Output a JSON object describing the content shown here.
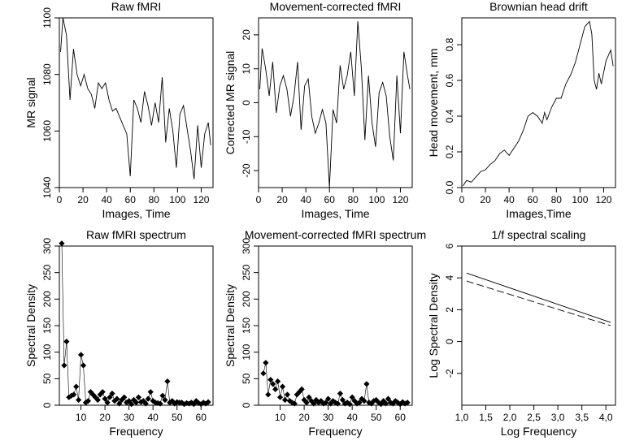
{
  "chart_data": [
    {
      "id": "raw_fmri",
      "type": "line",
      "title": "Raw fMRI",
      "xlabel": "Images, Time",
      "ylabel": "MR signal",
      "xlim": [
        0,
        130
      ],
      "ylim": [
        1040,
        1100
      ],
      "xticks": [
        0,
        20,
        40,
        60,
        80,
        100,
        120
      ],
      "yticks": [
        1040,
        1060,
        1080,
        1100
      ],
      "grid": false,
      "series": [
        {
          "color": "#000000",
          "style": "solid",
          "x": [
            1,
            3,
            6,
            9,
            12,
            15,
            18,
            21,
            24,
            27,
            30,
            33,
            36,
            39,
            42,
            45,
            48,
            51,
            54,
            57,
            60,
            63,
            66,
            69,
            72,
            75,
            78,
            81,
            84,
            87,
            90,
            93,
            96,
            99,
            102,
            105,
            108,
            111,
            114,
            117,
            120,
            123,
            126,
            128
          ],
          "y": [
            1088,
            1100,
            1094,
            1071,
            1089,
            1080,
            1076,
            1080,
            1075,
            1073,
            1068,
            1077,
            1075,
            1077,
            1071,
            1067,
            1068,
            1065,
            1062,
            1059,
            1044,
            1071,
            1068,
            1063,
            1074,
            1069,
            1062,
            1070,
            1063,
            1079,
            1056,
            1068,
            1060,
            1047,
            1066,
            1069,
            1061,
            1053,
            1043,
            1062,
            1047,
            1059,
            1063,
            1055
          ]
        }
      ]
    },
    {
      "id": "movement_corrected",
      "type": "line",
      "title": "Movement-corrected fMRI",
      "xlabel": "Images, Time",
      "ylabel": "Corrected MR signal",
      "xlim": [
        0,
        130
      ],
      "ylim": [
        -25,
        25
      ],
      "xticks": [
        0,
        20,
        40,
        60,
        80,
        100,
        120
      ],
      "yticks": [
        -20,
        -10,
        0,
        10,
        20
      ],
      "grid": false,
      "series": [
        {
          "color": "#000000",
          "style": "solid",
          "x": [
            1,
            3,
            6,
            9,
            12,
            15,
            18,
            21,
            24,
            27,
            30,
            33,
            36,
            39,
            42,
            45,
            48,
            51,
            54,
            57,
            60,
            63,
            66,
            69,
            72,
            75,
            78,
            81,
            84,
            87,
            90,
            93,
            96,
            99,
            102,
            105,
            108,
            111,
            114,
            117,
            120,
            123,
            126,
            128
          ],
          "y": [
            4,
            16,
            10,
            2,
            12,
            -3,
            5,
            8,
            4,
            -4,
            2,
            12,
            -8,
            5,
            7,
            -4,
            -9,
            -6,
            -2,
            -6,
            -25,
            -2,
            -6,
            11,
            4,
            8,
            15,
            2,
            24,
            10,
            -11,
            8,
            -6,
            -13,
            3,
            6,
            2,
            -10,
            -17,
            8,
            -9,
            15,
            8,
            4
          ]
        }
      ]
    },
    {
      "id": "brownian_drift",
      "type": "line",
      "title": "Brownian head drift",
      "xlabel": "Images,Time",
      "ylabel": "Head movement, mm",
      "xlim": [
        0,
        130
      ],
      "ylim": [
        0,
        0.95
      ],
      "xticks": [
        0,
        20,
        40,
        60,
        80,
        100,
        120
      ],
      "yticks": [
        0.0,
        0.2,
        0.4,
        0.6,
        0.8
      ],
      "grid": false,
      "series": [
        {
          "color": "#000000",
          "style": "solid",
          "x": [
            1,
            4,
            8,
            12,
            16,
            20,
            24,
            28,
            32,
            36,
            40,
            44,
            48,
            52,
            56,
            60,
            64,
            68,
            70,
            72,
            76,
            80,
            84,
            88,
            92,
            96,
            100,
            104,
            108,
            110,
            112,
            114,
            116,
            118,
            122,
            126,
            128
          ],
          "y": [
            0.01,
            0.04,
            0.03,
            0.06,
            0.09,
            0.1,
            0.13,
            0.15,
            0.19,
            0.21,
            0.18,
            0.22,
            0.26,
            0.32,
            0.4,
            0.42,
            0.4,
            0.36,
            0.42,
            0.38,
            0.45,
            0.5,
            0.5,
            0.58,
            0.63,
            0.7,
            0.8,
            0.9,
            0.93,
            0.86,
            0.6,
            0.55,
            0.64,
            0.58,
            0.71,
            0.77,
            0.68
          ]
        }
      ]
    },
    {
      "id": "raw_spectrum",
      "type": "scatter",
      "title": "Raw fMRI spectrum",
      "xlabel": "Frequency",
      "ylabel": "Spectral Density",
      "xlim": [
        1,
        65
      ],
      "ylim": [
        0,
        300
      ],
      "xticks": [
        10,
        20,
        30,
        40,
        50,
        60
      ],
      "yticks": [
        0,
        50,
        100,
        150,
        200,
        250,
        300
      ],
      "grid": false,
      "series": [
        {
          "marker": "diamond",
          "connected": true,
          "color": "#000000",
          "x": [
            2,
            3,
            4,
            5,
            6,
            7,
            8,
            9,
            10,
            11,
            12,
            13,
            14,
            15,
            16,
            17,
            18,
            19,
            20,
            21,
            22,
            23,
            24,
            25,
            26,
            27,
            28,
            29,
            30,
            31,
            32,
            33,
            34,
            35,
            36,
            37,
            38,
            39,
            40,
            41,
            42,
            43,
            44,
            45,
            46,
            47,
            48,
            49,
            50,
            51,
            52,
            53,
            54,
            55,
            56,
            57,
            58,
            59,
            60,
            61,
            62,
            63
          ],
          "y": [
            305,
            75,
            120,
            15,
            18,
            20,
            35,
            10,
            95,
            75,
            5,
            8,
            25,
            20,
            15,
            10,
            20,
            25,
            12,
            5,
            15,
            22,
            8,
            12,
            3,
            10,
            15,
            5,
            8,
            2,
            10,
            5,
            15,
            6,
            8,
            3,
            12,
            25,
            8,
            5,
            4,
            3,
            18,
            10,
            45,
            5,
            8,
            3,
            6,
            5,
            5,
            2,
            4,
            3,
            5,
            2,
            8,
            4,
            2,
            5,
            3,
            6
          ]
        }
      ]
    },
    {
      "id": "corrected_spectrum",
      "type": "scatter",
      "title": "Movement-corrected fMRI spectrum",
      "xlabel": "Frequency",
      "ylabel": "Spectral Density",
      "xlim": [
        1,
        65
      ],
      "ylim": [
        0,
        300
      ],
      "xticks": [
        10,
        20,
        30,
        40,
        50,
        60
      ],
      "yticks": [
        0,
        50,
        100,
        150,
        200,
        250,
        300
      ],
      "grid": false,
      "series": [
        {
          "marker": "diamond",
          "connected": true,
          "color": "#000000",
          "x": [
            3,
            4,
            5,
            6,
            7,
            8,
            9,
            10,
            11,
            12,
            13,
            14,
            15,
            16,
            17,
            18,
            19,
            20,
            21,
            22,
            23,
            24,
            25,
            26,
            27,
            28,
            29,
            30,
            31,
            32,
            33,
            34,
            35,
            36,
            37,
            38,
            39,
            40,
            41,
            42,
            43,
            44,
            45,
            46,
            47,
            48,
            49,
            50,
            51,
            52,
            53,
            54,
            55,
            56,
            57,
            58,
            59,
            60,
            61,
            62,
            63
          ],
          "y": [
            60,
            80,
            20,
            48,
            40,
            30,
            45,
            15,
            35,
            10,
            20,
            8,
            5,
            3,
            20,
            25,
            30,
            10,
            5,
            15,
            8,
            3,
            10,
            5,
            8,
            3,
            5,
            12,
            3,
            8,
            5,
            3,
            22,
            10,
            3,
            5,
            2,
            15,
            8,
            3,
            5,
            12,
            8,
            40,
            5,
            3,
            8,
            10,
            5,
            2,
            8,
            3,
            12,
            5,
            3,
            8,
            5,
            2,
            6,
            3,
            5
          ]
        }
      ]
    },
    {
      "id": "spectral_scaling",
      "type": "line",
      "title": "1/f spectral scaling",
      "xlabel": "Log Frequency",
      "ylabel": "Log Spectral Density",
      "xlim": [
        1.0,
        4.2
      ],
      "ylim": [
        -4,
        6
      ],
      "xticks": [
        "1,0",
        "1,5",
        "2,0",
        "2,5",
        "3,0",
        "3,5",
        "4,0"
      ],
      "xtick_values": [
        1.0,
        1.5,
        2.0,
        2.5,
        3.0,
        3.5,
        4.0
      ],
      "yticks": [
        -2,
        0,
        2,
        4,
        6
      ],
      "grid": false,
      "series": [
        {
          "color": "#000000",
          "style": "solid",
          "x": [
            1.1,
            4.1
          ],
          "y": [
            4.3,
            1.2
          ]
        },
        {
          "color": "#000000",
          "style": "dashed",
          "x": [
            1.1,
            4.1
          ],
          "y": [
            3.8,
            1.0
          ]
        }
      ]
    }
  ]
}
